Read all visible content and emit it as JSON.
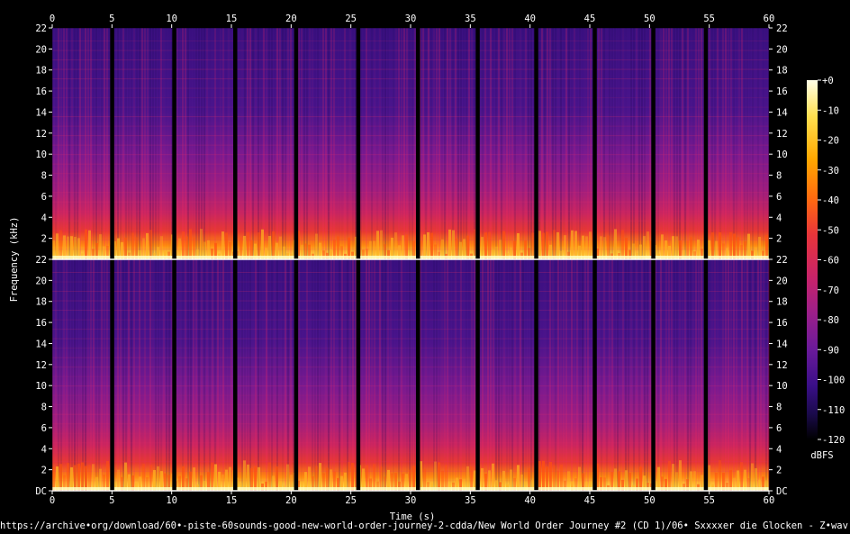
{
  "chart_data": {
    "type": "heatmap",
    "title": "",
    "xlabel": "Time (s)",
    "ylabel": "Frequency (kHz)",
    "xlim": [
      0,
      60
    ],
    "ylim_khz": [
      0,
      22
    ],
    "x_ticks": [
      "0",
      "5",
      "10",
      "15",
      "20",
      "25",
      "30",
      "35",
      "40",
      "45",
      "50",
      "55",
      "60"
    ],
    "y_ticks": [
      "DC",
      "2",
      "4",
      "6",
      "8",
      "10",
      "12",
      "14",
      "16",
      "18",
      "20",
      "22"
    ],
    "channels": 2,
    "colorbar": {
      "label": "dBFS",
      "ticks": [
        "+0",
        "-10",
        "-20",
        "-30",
        "-40",
        "-50",
        "-60",
        "-70",
        "-80",
        "-90",
        "-100",
        "-110",
        "-120"
      ],
      "range": [
        0,
        -120
      ]
    },
    "colormap": [
      "#000000",
      "#1a0a4a",
      "#3a0f88",
      "#6a1a9a",
      "#9b1f8a",
      "#c8236a",
      "#e8353a",
      "#ff6a10",
      "#ffa800",
      "#ffe050",
      "#ffffe8"
    ],
    "silence_gaps_s": [
      5.0,
      10.2,
      15.3,
      20.4,
      25.6,
      30.6,
      35.6,
      40.5,
      45.4,
      50.3,
      54.7
    ],
    "source_url": "https://archive•org/download/60•-piste-60sounds-good-new-world-order-journey-2-cdda/New World Order Journey #2 (CD 1)/06• Sxxxxer die Glocken - Z•wav"
  }
}
